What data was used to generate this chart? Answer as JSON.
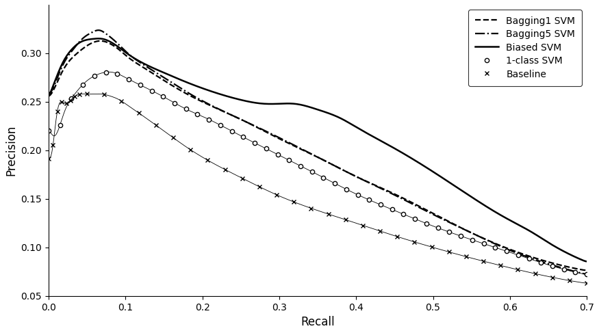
{
  "xlabel": "Recall",
  "ylabel": "Precision",
  "xlim": [
    0,
    0.7
  ],
  "ylim": [
    0.05,
    0.35
  ],
  "yticks": [
    0.05,
    0.1,
    0.15,
    0.2,
    0.25,
    0.3
  ],
  "xticks": [
    0.0,
    0.1,
    0.2,
    0.3,
    0.4,
    0.5,
    0.6,
    0.7
  ],
  "legend_labels": [
    "Bagging1 SVM",
    "Bagging5 SVM",
    "Biased SVM",
    "1-class SVM",
    "Baseline"
  ],
  "line_color": "#000000",
  "background_color": "#ffffff"
}
